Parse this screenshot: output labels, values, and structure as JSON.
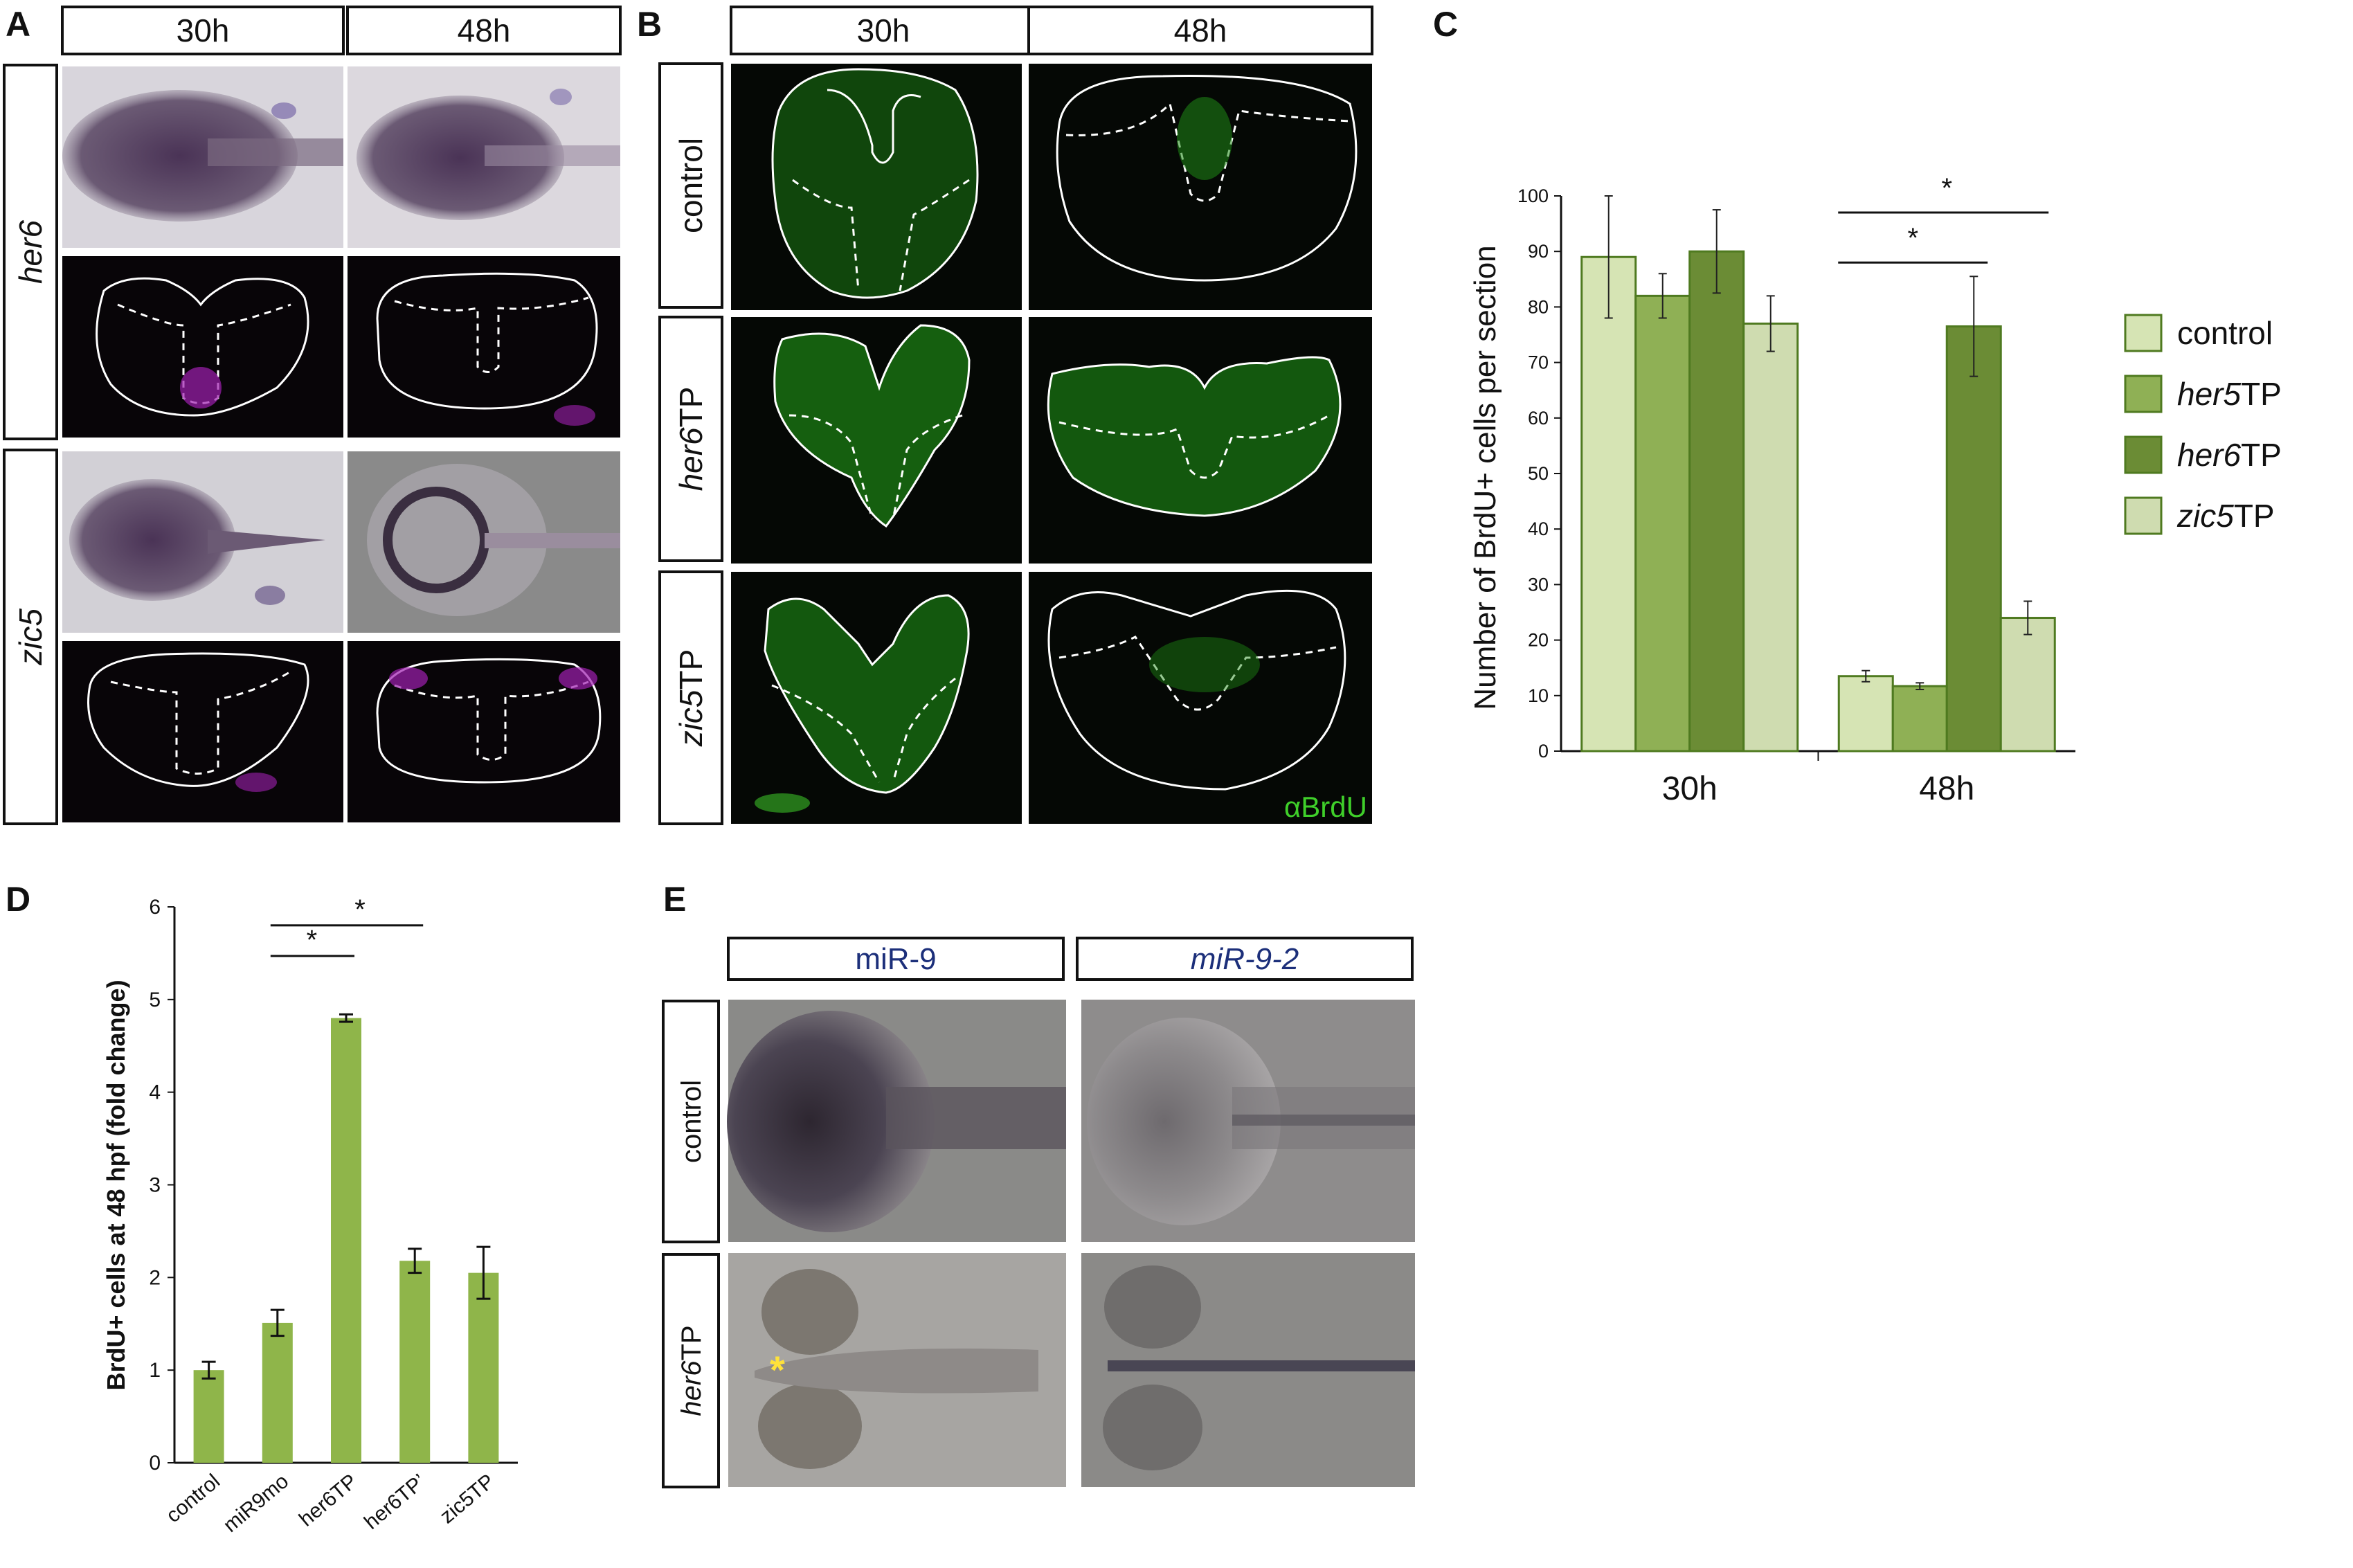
{
  "panels": {
    "A": {
      "label": "A",
      "columns": [
        "30h",
        "48h"
      ],
      "rows": [
        {
          "gene": "her6"
        },
        {
          "gene": "zic5"
        }
      ]
    },
    "B": {
      "label": "B",
      "columns": [
        "30h",
        "48h"
      ],
      "rows": [
        {
          "name": "control",
          "italic": "",
          "suffix": ""
        },
        {
          "name": "her6TP",
          "italic": "her6",
          "suffix": "TP"
        },
        {
          "name": "zic5TP",
          "italic": "zic5",
          "suffix": "TP"
        }
      ],
      "stain": "αBrdU"
    },
    "C": {
      "label": "C"
    },
    "D": {
      "label": "D"
    },
    "E": {
      "label": "E",
      "columns": [
        "miR-9",
        "miR-9-2"
      ],
      "rows": [
        {
          "name": "control",
          "italic": "",
          "suffix": ""
        },
        {
          "name": "her6TP",
          "italic": "her6",
          "suffix": "TP"
        }
      ],
      "marker": "*"
    }
  },
  "colors": {
    "control": "#d6e4b4",
    "her5TP": "#8fb055",
    "her6TP": "#6b8c35",
    "zic5TP": "#cfdcb0",
    "barD": "#8fb54a",
    "brdu": "#3fcf2a",
    "isH": "#a855c0"
  },
  "chart_data": [
    {
      "type": "bar",
      "panel": "C",
      "ylabel": "Number of BrdU+ cells per section",
      "ylim": [
        0,
        100
      ],
      "yticks": [
        "0",
        "10",
        "20",
        "30",
        "40",
        "50",
        "60",
        "70",
        "80",
        "90",
        "100"
      ],
      "categories": [
        "30h",
        "48h"
      ],
      "series": [
        {
          "name": "control",
          "italic": "",
          "suffix": "",
          "values": [
            89,
            13.5
          ],
          "errors": [
            11,
            1
          ]
        },
        {
          "name": "her5TP",
          "italic": "her5",
          "suffix": "TP",
          "values": [
            82,
            11.7
          ],
          "errors": [
            4,
            0.6
          ]
        },
        {
          "name": "her6TP",
          "italic": "her6",
          "suffix": "TP",
          "values": [
            90,
            76.5
          ],
          "errors": [
            7.5,
            9
          ]
        },
        {
          "name": "zic5TP",
          "italic": "zic5",
          "suffix": "TP",
          "values": [
            77,
            24
          ],
          "errors": [
            5,
            3
          ]
        }
      ],
      "significance": [
        "*",
        "*"
      ],
      "legend": "right",
      "grid": false
    },
    {
      "type": "bar",
      "panel": "D",
      "ylabel": "BrdU+ cells at 48 hpf (fold change)",
      "ylim": [
        0,
        6
      ],
      "yticks": [
        "0",
        "1",
        "2",
        "3",
        "4",
        "5",
        "6"
      ],
      "categories": [
        "control",
        "miR9mo",
        "her6TP",
        "her6TP’",
        "zic5TP"
      ],
      "values": [
        1.0,
        1.51,
        4.8,
        2.18,
        2.05
      ],
      "errors": [
        0.09,
        0.14,
        0.04,
        0.13,
        0.28
      ],
      "significance": [
        "*",
        "*"
      ],
      "grid": false
    }
  ]
}
